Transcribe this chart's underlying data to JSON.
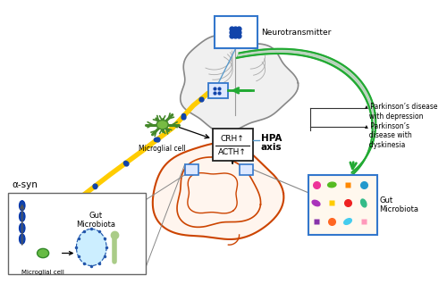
{
  "bg_color": "#ffffff",
  "labels": {
    "neurotransmitter": "Neurotransmitter",
    "microglial_cell_top": "Microglial cell",
    "hpa_line1": "HPA",
    "hpa_line2": "axis",
    "crh": "CRH↑",
    "acth": "ACTH↑",
    "alpha_syn": "α-syn",
    "gut_microbiota_box": "Gut\nMicrobiota",
    "microglial_cell_bottom": "Microglial cell",
    "gut_microbiota_right": "Gut\nMicrobiota",
    "pd_depression": "▴ Parkinson’s disease\n  with depression",
    "pd_dyskinesia": "▴ Parkinson’s\n  disease with\n  dyskinesia"
  },
  "colors": {
    "yellow_arrow": "#FFCC00",
    "green_arrow": "#22AA33",
    "gray_sweep": "#BBBBBB",
    "box_border_blue": "#3377CC",
    "hpa_box_border": "#222222",
    "brain_outline": "#888888",
    "intestine_color": "#CC4400",
    "text_color": "#111111",
    "blue_dot": "#1144AA",
    "microglial_green": "#55AA33",
    "microglial_light": "#88CC55",
    "gut_bg": "#FFF5EE",
    "neuro_line_color": "#5599CC"
  },
  "figsize": [
    5.0,
    3.27
  ],
  "dpi": 100
}
